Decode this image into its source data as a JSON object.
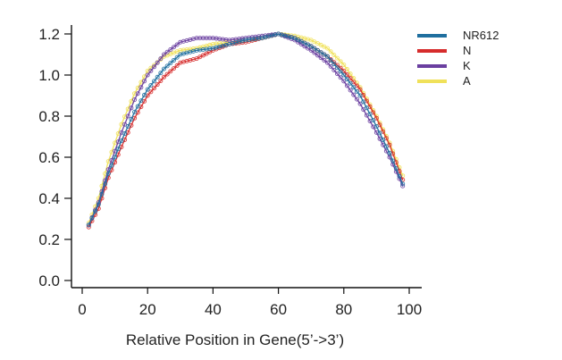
{
  "chart_data": {
    "type": "line",
    "title": "",
    "xlabel": "Relative Position in Gene(5’->3’)",
    "ylabel": "",
    "xlim": [
      0,
      100
    ],
    "ylim": [
      0.0,
      1.2
    ],
    "x_ticks": [
      0,
      20,
      40,
      60,
      80,
      100
    ],
    "y_ticks": [
      0.0,
      0.2,
      0.4,
      0.6,
      0.8,
      1.0,
      1.2
    ],
    "x_tick_labels": [
      "0",
      "20",
      "40",
      "60",
      "80",
      "100"
    ],
    "y_tick_labels": [
      "0.0",
      "0.2",
      "0.4",
      "0.6",
      "0.8",
      "1.0",
      "1.2"
    ],
    "grid": false,
    "legend_position": "top-right",
    "series": [
      {
        "name": "NR612",
        "color": "#1f6f9f",
        "x": [
          2,
          5,
          8,
          12,
          16,
          20,
          25,
          30,
          35,
          40,
          45,
          50,
          55,
          60,
          65,
          70,
          75,
          80,
          85,
          90,
          94,
          98
        ],
        "y": [
          0.27,
          0.37,
          0.52,
          0.68,
          0.82,
          0.93,
          1.03,
          1.1,
          1.12,
          1.13,
          1.15,
          1.17,
          1.18,
          1.2,
          1.18,
          1.14,
          1.09,
          1.0,
          0.9,
          0.75,
          0.62,
          0.47
        ]
      },
      {
        "name": "N",
        "color": "#d62c2c",
        "x": [
          2,
          5,
          8,
          12,
          16,
          20,
          25,
          30,
          35,
          40,
          45,
          50,
          55,
          60,
          65,
          70,
          75,
          80,
          85,
          90,
          94,
          98
        ],
        "y": [
          0.26,
          0.35,
          0.5,
          0.65,
          0.79,
          0.9,
          0.99,
          1.06,
          1.08,
          1.12,
          1.15,
          1.16,
          1.18,
          1.2,
          1.18,
          1.14,
          1.09,
          1.02,
          0.93,
          0.79,
          0.66,
          0.49
        ]
      },
      {
        "name": "K",
        "color": "#6a3fa0",
        "x": [
          2,
          5,
          8,
          12,
          16,
          20,
          25,
          30,
          35,
          40,
          45,
          50,
          55,
          60,
          65,
          70,
          75,
          80,
          85,
          90,
          94,
          98
        ],
        "y": [
          0.27,
          0.38,
          0.54,
          0.72,
          0.88,
          1.0,
          1.1,
          1.16,
          1.18,
          1.18,
          1.17,
          1.18,
          1.19,
          1.2,
          1.17,
          1.12,
          1.06,
          0.97,
          0.86,
          0.72,
          0.6,
          0.46
        ]
      },
      {
        "name": "A",
        "color": "#f0e15a",
        "x": [
          2,
          5,
          8,
          12,
          16,
          20,
          25,
          30,
          35,
          40,
          45,
          50,
          55,
          60,
          65,
          70,
          75,
          80,
          85,
          90,
          94,
          98
        ],
        "y": [
          0.28,
          0.4,
          0.58,
          0.76,
          0.91,
          1.02,
          1.09,
          1.12,
          1.13,
          1.15,
          1.16,
          1.17,
          1.18,
          1.2,
          1.19,
          1.17,
          1.13,
          1.05,
          0.94,
          0.8,
          0.67,
          0.51
        ]
      }
    ]
  }
}
